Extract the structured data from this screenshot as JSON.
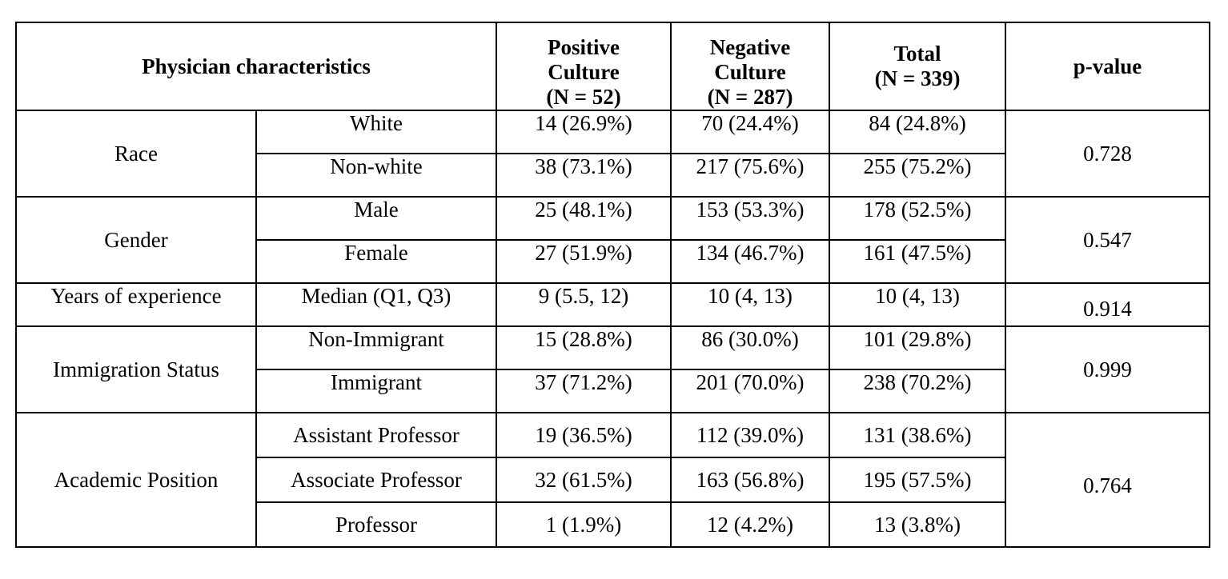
{
  "header": {
    "characteristics": "Physician characteristics",
    "positive": [
      "Positive",
      "Culture",
      "(N = 52)"
    ],
    "negative": [
      "Negative",
      "Culture",
      "(N = 287)"
    ],
    "total": [
      "Total",
      "(N = 339)"
    ],
    "pvalue": "p-value"
  },
  "groups": [
    {
      "name": "Race",
      "pvalue": "0.728",
      "rows": [
        {
          "label": "White",
          "positive": "14 (26.9%)",
          "negative": "70 (24.4%)",
          "total": "84 (24.8%)"
        },
        {
          "label": "Non-white",
          "positive": "38 (73.1%)",
          "negative": "217 (75.6%)",
          "total": "255 (75.2%)"
        }
      ]
    },
    {
      "name": "Gender",
      "pvalue": "0.547",
      "rows": [
        {
          "label": "Male",
          "positive": "25 (48.1%)",
          "negative": "153 (53.3%)",
          "total": "178 (52.5%)"
        },
        {
          "label": "Female",
          "positive": "27 (51.9%)",
          "negative": "134 (46.7%)",
          "total": "161 (47.5%)"
        }
      ]
    },
    {
      "name": "Years of experience",
      "pvalue": "0.914",
      "rows": [
        {
          "label": "Median (Q1, Q3)",
          "positive": "9 (5.5, 12)",
          "negative": "10 (4, 13)",
          "total": "10 (4, 13)"
        }
      ]
    },
    {
      "name": "Immigration Status",
      "pvalue": "0.999",
      "rows": [
        {
          "label": "Non-Immigrant",
          "positive": "15 (28.8%)",
          "negative": "86 (30.0%)",
          "total": "101 (29.8%)"
        },
        {
          "label": "Immigrant",
          "positive": "37 (71.2%)",
          "negative": "201 (70.0%)",
          "total": "238 (70.2%)"
        }
      ]
    },
    {
      "name": "Academic Position",
      "pvalue": "0.764",
      "rows": [
        {
          "label": "Assistant Professor",
          "positive": "19 (36.5%)",
          "negative": "112 (39.0%)",
          "total": "131 (38.6%)"
        },
        {
          "label": "Associate Professor",
          "positive": "32 (61.5%)",
          "negative": "163 (56.8%)",
          "total": "195 (57.5%)"
        },
        {
          "label": "Professor",
          "positive": "1 (1.9%)",
          "negative": "12 (4.2%)",
          "total": "13 (3.8%)"
        }
      ]
    }
  ]
}
